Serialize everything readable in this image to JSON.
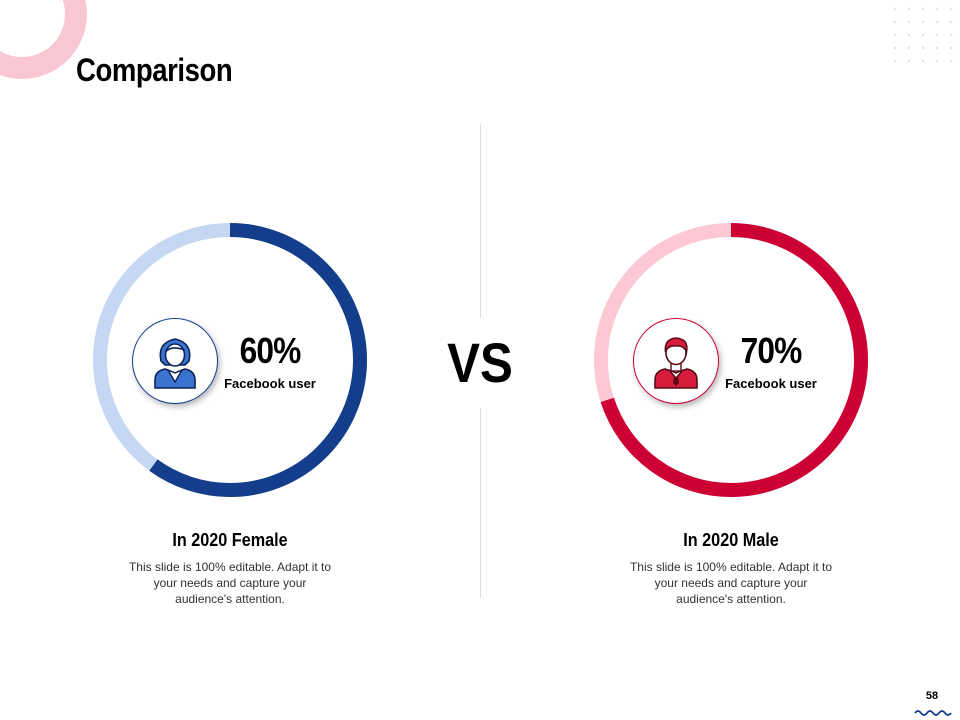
{
  "slide": {
    "title": "Comparison",
    "vs_label": "VS",
    "page_number": "58"
  },
  "colors": {
    "accent_pink": "#f9c6d3",
    "navy": "#143d8c",
    "light_blue": "#c5d7f3",
    "crimson": "#cc0033",
    "light_pink": "#fbc8d4"
  },
  "female": {
    "percent": "60%",
    "percent_value": 60,
    "metric_label": "Facebook user",
    "heading": "In 2020 Female",
    "description": "This slide is 100% editable. Adapt it to your needs and capture your audience's attention.",
    "icon": "female-user-icon"
  },
  "male": {
    "percent": "70%",
    "percent_value": 70,
    "metric_label": "Facebook user",
    "heading": "In 2020 Male",
    "description": "This slide is 100% editable. Adapt it to your needs and capture your audience's attention.",
    "icon": "male-user-icon"
  }
}
